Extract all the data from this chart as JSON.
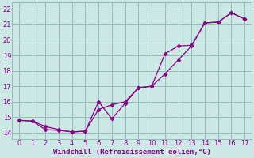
{
  "xlabel": "Windchill (Refroidissement éolien,°C)",
  "background_color": "#cce8e4",
  "line_color": "#880088",
  "grid_color": "#99bbbb",
  "xlim": [
    -0.5,
    17.5
  ],
  "ylim": [
    13.6,
    22.4
  ],
  "xticks": [
    0,
    1,
    2,
    3,
    4,
    5,
    6,
    7,
    8,
    9,
    10,
    11,
    12,
    13,
    14,
    15,
    16,
    17
  ],
  "yticks": [
    14,
    15,
    16,
    17,
    18,
    19,
    20,
    21,
    22
  ],
  "line1_x": [
    0,
    1,
    2,
    3,
    4,
    5,
    6,
    7,
    8,
    9,
    10,
    11,
    12,
    13,
    14,
    15,
    16,
    17
  ],
  "line1_y": [
    14.8,
    14.75,
    14.2,
    14.15,
    14.05,
    14.1,
    15.5,
    15.8,
    16.0,
    16.9,
    17.0,
    17.8,
    18.7,
    19.6,
    21.1,
    21.15,
    21.75,
    21.35
  ],
  "line2_x": [
    0,
    1,
    2,
    3,
    4,
    5,
    6,
    7,
    8,
    9,
    10,
    11,
    12,
    13,
    14,
    15,
    16,
    17
  ],
  "line2_y": [
    14.8,
    14.75,
    14.4,
    14.2,
    14.05,
    14.1,
    16.0,
    14.9,
    15.9,
    16.9,
    17.0,
    19.1,
    19.6,
    19.65,
    21.1,
    21.15,
    21.75,
    21.35
  ],
  "marker": "D",
  "markersize": 2.5,
  "linewidth": 0.9,
  "tick_fontsize": 6,
  "xlabel_fontsize": 6.5
}
